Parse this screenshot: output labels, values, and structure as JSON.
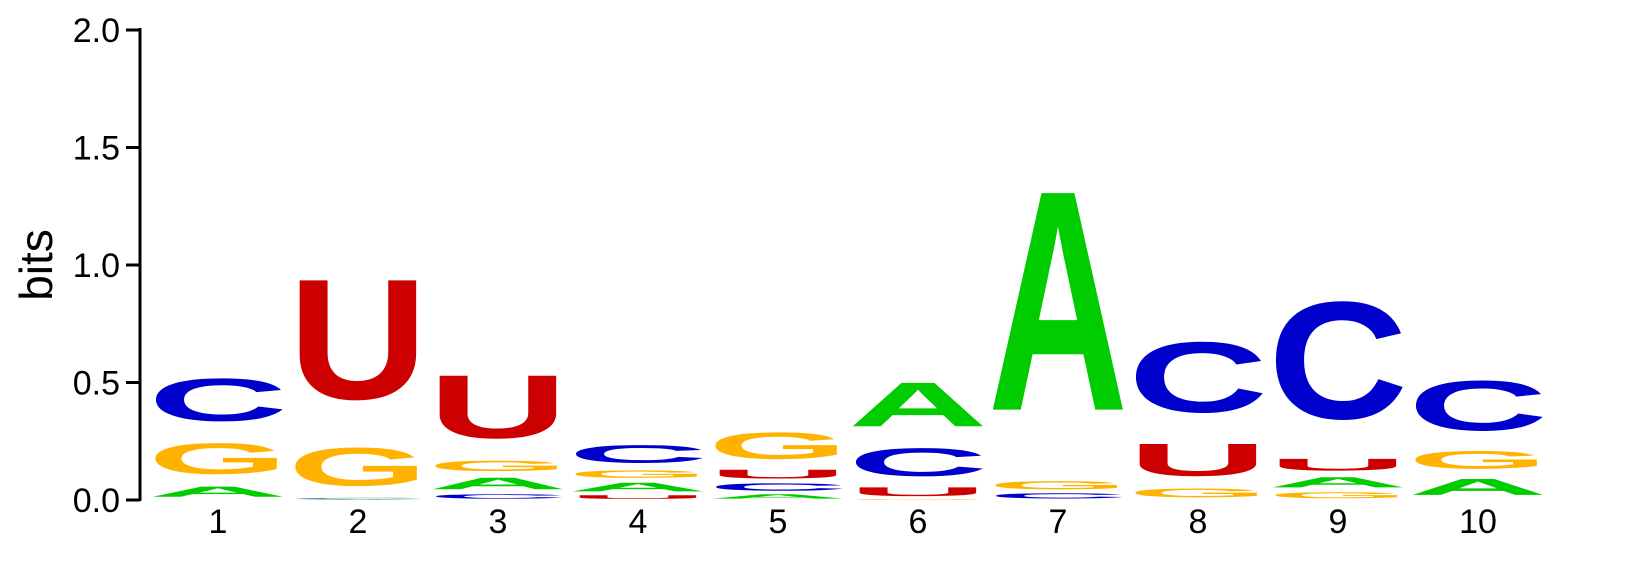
{
  "chart_data": {
    "type": "sequence-logo",
    "alphabet": "RNA",
    "ylabel": "bits",
    "ylim": [
      0,
      2.0
    ],
    "yticks": [
      "0.0",
      "0.5",
      "1.0",
      "1.5",
      "2.0"
    ],
    "ytick_values": [
      0,
      0.5,
      1.0,
      1.5,
      2.0
    ],
    "colors": {
      "A": "#00cc00",
      "C": "#0000cc",
      "G": "#ffb300",
      "U": "#cc0000"
    },
    "positions": [
      {
        "label": "1",
        "stack": [
          {
            "base": "A",
            "bits": 0.07
          },
          {
            "base": "G",
            "bits": 0.21
          },
          {
            "base": "C",
            "bits": 0.29
          }
        ]
      },
      {
        "label": "2",
        "stack": [
          {
            "base": "A",
            "bits": 0.005
          },
          {
            "base": "C",
            "bits": 0.005
          },
          {
            "base": "G",
            "bits": 0.26
          },
          {
            "base": "U",
            "bits": 0.82
          }
        ]
      },
      {
        "label": "3",
        "stack": [
          {
            "base": "C",
            "bits": 0.03
          },
          {
            "base": "A",
            "bits": 0.08
          },
          {
            "base": "G",
            "bits": 0.07
          },
          {
            "base": "U",
            "bits": 0.43
          }
        ]
      },
      {
        "label": "4",
        "stack": [
          {
            "base": "U",
            "bits": 0.025
          },
          {
            "base": "A",
            "bits": 0.06
          },
          {
            "base": "G",
            "bits": 0.05
          },
          {
            "base": "C",
            "bits": 0.12
          }
        ]
      },
      {
        "label": "5",
        "stack": [
          {
            "base": "A",
            "bits": 0.03
          },
          {
            "base": "C",
            "bits": 0.05
          },
          {
            "base": "U",
            "bits": 0.06
          },
          {
            "base": "G",
            "bits": 0.18
          }
        ]
      },
      {
        "label": "6",
        "stack": [
          {
            "base": "G",
            "bits": 0.005
          },
          {
            "base": "U",
            "bits": 0.06
          },
          {
            "base": "C",
            "bits": 0.19
          },
          {
            "base": "A",
            "bits": 0.3
          }
        ]
      },
      {
        "label": "7",
        "stack": [
          {
            "base": "C",
            "bits": 0.035
          },
          {
            "base": "G",
            "bits": 0.055
          },
          {
            "base": "A",
            "bits": 1.5
          }
        ]
      },
      {
        "label": "8",
        "stack": [
          {
            "base": "G",
            "bits": 0.06
          },
          {
            "base": "U",
            "bits": 0.22
          },
          {
            "base": "C",
            "bits": 0.48
          }
        ]
      },
      {
        "label": "9",
        "stack": [
          {
            "base": "G",
            "bits": 0.04
          },
          {
            "base": "A",
            "bits": 0.07
          },
          {
            "base": "U",
            "bits": 0.08
          },
          {
            "base": "C",
            "bits": 0.8
          }
        ]
      },
      {
        "label": "10",
        "stack": [
          {
            "base": "A",
            "bits": 0.11
          },
          {
            "base": "G",
            "bits": 0.12
          },
          {
            "base": "C",
            "bits": 0.34
          }
        ]
      }
    ]
  }
}
